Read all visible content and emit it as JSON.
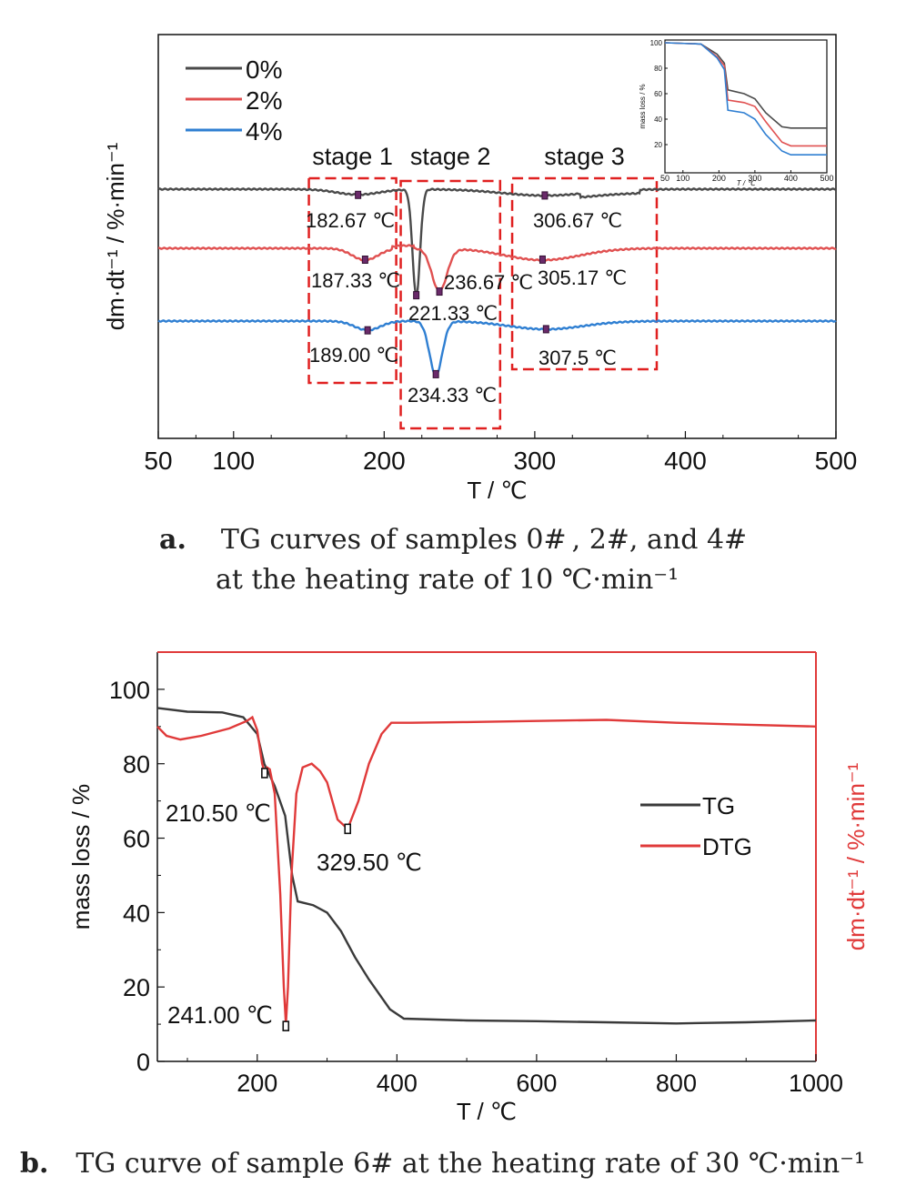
{
  "chart_data": [
    {
      "type": "line",
      "xlabel": "T / ℃",
      "ylabel": "dm·dt⁻¹ / %·min⁻¹",
      "xlim": [
        50,
        500
      ],
      "x_ticks": [
        "50",
        "100",
        "200",
        "300",
        "400",
        "500"
      ],
      "y_ticks_shown": false,
      "legend": {
        "position": "top-left",
        "entries": [
          "0%",
          "2%",
          "4%"
        ]
      },
      "stages": [
        {
          "label": "stage 1",
          "x_range": [
            150,
            208
          ]
        },
        {
          "label": "stage 2",
          "x_range": [
            211,
            277
          ]
        },
        {
          "label": "stage 3",
          "x_range": [
            285,
            381
          ]
        }
      ],
      "series": [
        {
          "name": "0%",
          "color": "#4a4a4a",
          "peaks": [
            {
              "x": 182.67,
              "label": "182.67 ℃"
            },
            {
              "x": 221.33,
              "label": "221.33 ℃"
            },
            {
              "x": 306.67,
              "label": "306.67 ℃"
            }
          ]
        },
        {
          "name": "2%",
          "color": "#e05050",
          "peaks": [
            {
              "x": 187.33,
              "label": "187.33 ℃"
            },
            {
              "x": 236.67,
              "label": "236.67 ℃"
            },
            {
              "x": 305.17,
              "label": "305.17 ℃"
            }
          ]
        },
        {
          "name": "4%",
          "color": "#2f7fd2",
          "peaks": [
            {
              "x": 189.0,
              "label": "189.00 ℃"
            },
            {
              "x": 234.33,
              "label": "234.33 ℃"
            },
            {
              "x": 307.5,
              "label": "307.5 ℃"
            }
          ]
        }
      ],
      "inset": {
        "ylabel": "mass loss / %",
        "xlabel": "T / ℃",
        "xlim": [
          50,
          500
        ],
        "ylim": [
          0,
          100
        ],
        "x_ticks": [
          "50",
          "100",
          "200",
          "300",
          "400",
          "500"
        ],
        "y_ticks": [
          "20",
          "40",
          "60",
          "80",
          "100"
        ],
        "series": [
          {
            "name": "0%",
            "color": "#4a4a4a",
            "points": [
              [
                50,
                100
              ],
              [
                150,
                99
              ],
              [
                195,
                91
              ],
              [
                215,
                84
              ],
              [
                225,
                63
              ],
              [
                270,
                60
              ],
              [
                300,
                56
              ],
              [
                330,
                45
              ],
              [
                375,
                34
              ],
              [
                400,
                33
              ],
              [
                500,
                33
              ]
            ]
          },
          {
            "name": "2%",
            "color": "#e05050",
            "points": [
              [
                50,
                100
              ],
              [
                150,
                99
              ],
              [
                195,
                89
              ],
              [
                215,
                82
              ],
              [
                225,
                55
              ],
              [
                270,
                53
              ],
              [
                300,
                50
              ],
              [
                330,
                38
              ],
              [
                375,
                22
              ],
              [
                400,
                19
              ],
              [
                500,
                19
              ]
            ]
          },
          {
            "name": "4%",
            "color": "#2f7fd2",
            "points": [
              [
                50,
                100
              ],
              [
                150,
                99
              ],
              [
                195,
                88
              ],
              [
                215,
                79
              ],
              [
                225,
                47
              ],
              [
                270,
                45
              ],
              [
                300,
                40
              ],
              [
                330,
                28
              ],
              [
                375,
                15
              ],
              [
                400,
                12
              ],
              [
                500,
                12
              ]
            ]
          }
        ]
      }
    },
    {
      "type": "line",
      "xlabel": "T / ℃",
      "ylabel": "mass loss / %",
      "ylabel_right": "dm·dt⁻¹ / %·min⁻¹",
      "xlim": [
        57,
        1000
      ],
      "ylim": [
        0,
        110
      ],
      "x_ticks": [
        "200",
        "400",
        "600",
        "800",
        "1000"
      ],
      "y_ticks": [
        "0",
        "20",
        "40",
        "60",
        "80",
        "100"
      ],
      "legend": {
        "position": "center-right",
        "entries": [
          "TG",
          "DTG"
        ]
      },
      "series": [
        {
          "name": "TG",
          "color": "#3a3a3a",
          "points": [
            [
              57,
              95
            ],
            [
              100,
              94
            ],
            [
              150,
              93.8
            ],
            [
              180,
              92.5
            ],
            [
              200,
              88
            ],
            [
              210,
              80
            ],
            [
              225,
              74
            ],
            [
              240,
              66
            ],
            [
              250,
              50
            ],
            [
              258,
              43
            ],
            [
              280,
              42
            ],
            [
              300,
              40
            ],
            [
              320,
              35
            ],
            [
              340,
              28
            ],
            [
              360,
              22
            ],
            [
              390,
              14
            ],
            [
              410,
              11.5
            ],
            [
              500,
              11
            ],
            [
              600,
              10.8
            ],
            [
              700,
              10.5
            ],
            [
              800,
              10.2
            ],
            [
              900,
              10.5
            ],
            [
              1000,
              11
            ]
          ]
        },
        {
          "name": "DTG",
          "color": "#e03a3a",
          "points": [
            [
              57,
              90
            ],
            [
              70,
              87.5
            ],
            [
              90,
              86.5
            ],
            [
              120,
              87.5
            ],
            [
              160,
              89.5
            ],
            [
              185,
              91.5
            ],
            [
              193,
              92.5
            ],
            [
              200,
              89
            ],
            [
              207,
              80
            ],
            [
              211,
              77.5
            ],
            [
              214,
              79
            ],
            [
              218,
              78.5
            ],
            [
              225,
              72
            ],
            [
              233,
              45
            ],
            [
              238,
              20
            ],
            [
              241,
              10
            ],
            [
              244,
              20
            ],
            [
              249,
              50
            ],
            [
              256,
              72
            ],
            [
              265,
              79
            ],
            [
              278,
              80
            ],
            [
              290,
              78
            ],
            [
              300,
              75
            ],
            [
              315,
              65
            ],
            [
              329.5,
              62.5
            ],
            [
              345,
              70
            ],
            [
              360,
              80
            ],
            [
              378,
              88
            ],
            [
              392,
              91
            ],
            [
              420,
              91
            ],
            [
              500,
              91.2
            ],
            [
              600,
              91.5
            ],
            [
              700,
              91.8
            ],
            [
              800,
              91
            ],
            [
              900,
              90.5
            ],
            [
              1000,
              90
            ]
          ]
        }
      ],
      "annotations": [
        {
          "label": "210.50 ℃",
          "x": 210.5,
          "y": 77.5
        },
        {
          "label": "329.50 ℃",
          "x": 329.5,
          "y": 62.5
        },
        {
          "label": "241.00 ℃",
          "x": 241.0,
          "y": 9.5
        }
      ]
    }
  ],
  "captions": {
    "a": {
      "bold": "a.",
      "line1": "TG curves of samples 0# , 2#, and 4#",
      "line2": "at the heating rate of 10 ℃·min⁻¹"
    },
    "b": {
      "bold": "b.",
      "line1": "TG curve of sample 6# at the heating rate of 30 ℃·min⁻¹"
    }
  }
}
